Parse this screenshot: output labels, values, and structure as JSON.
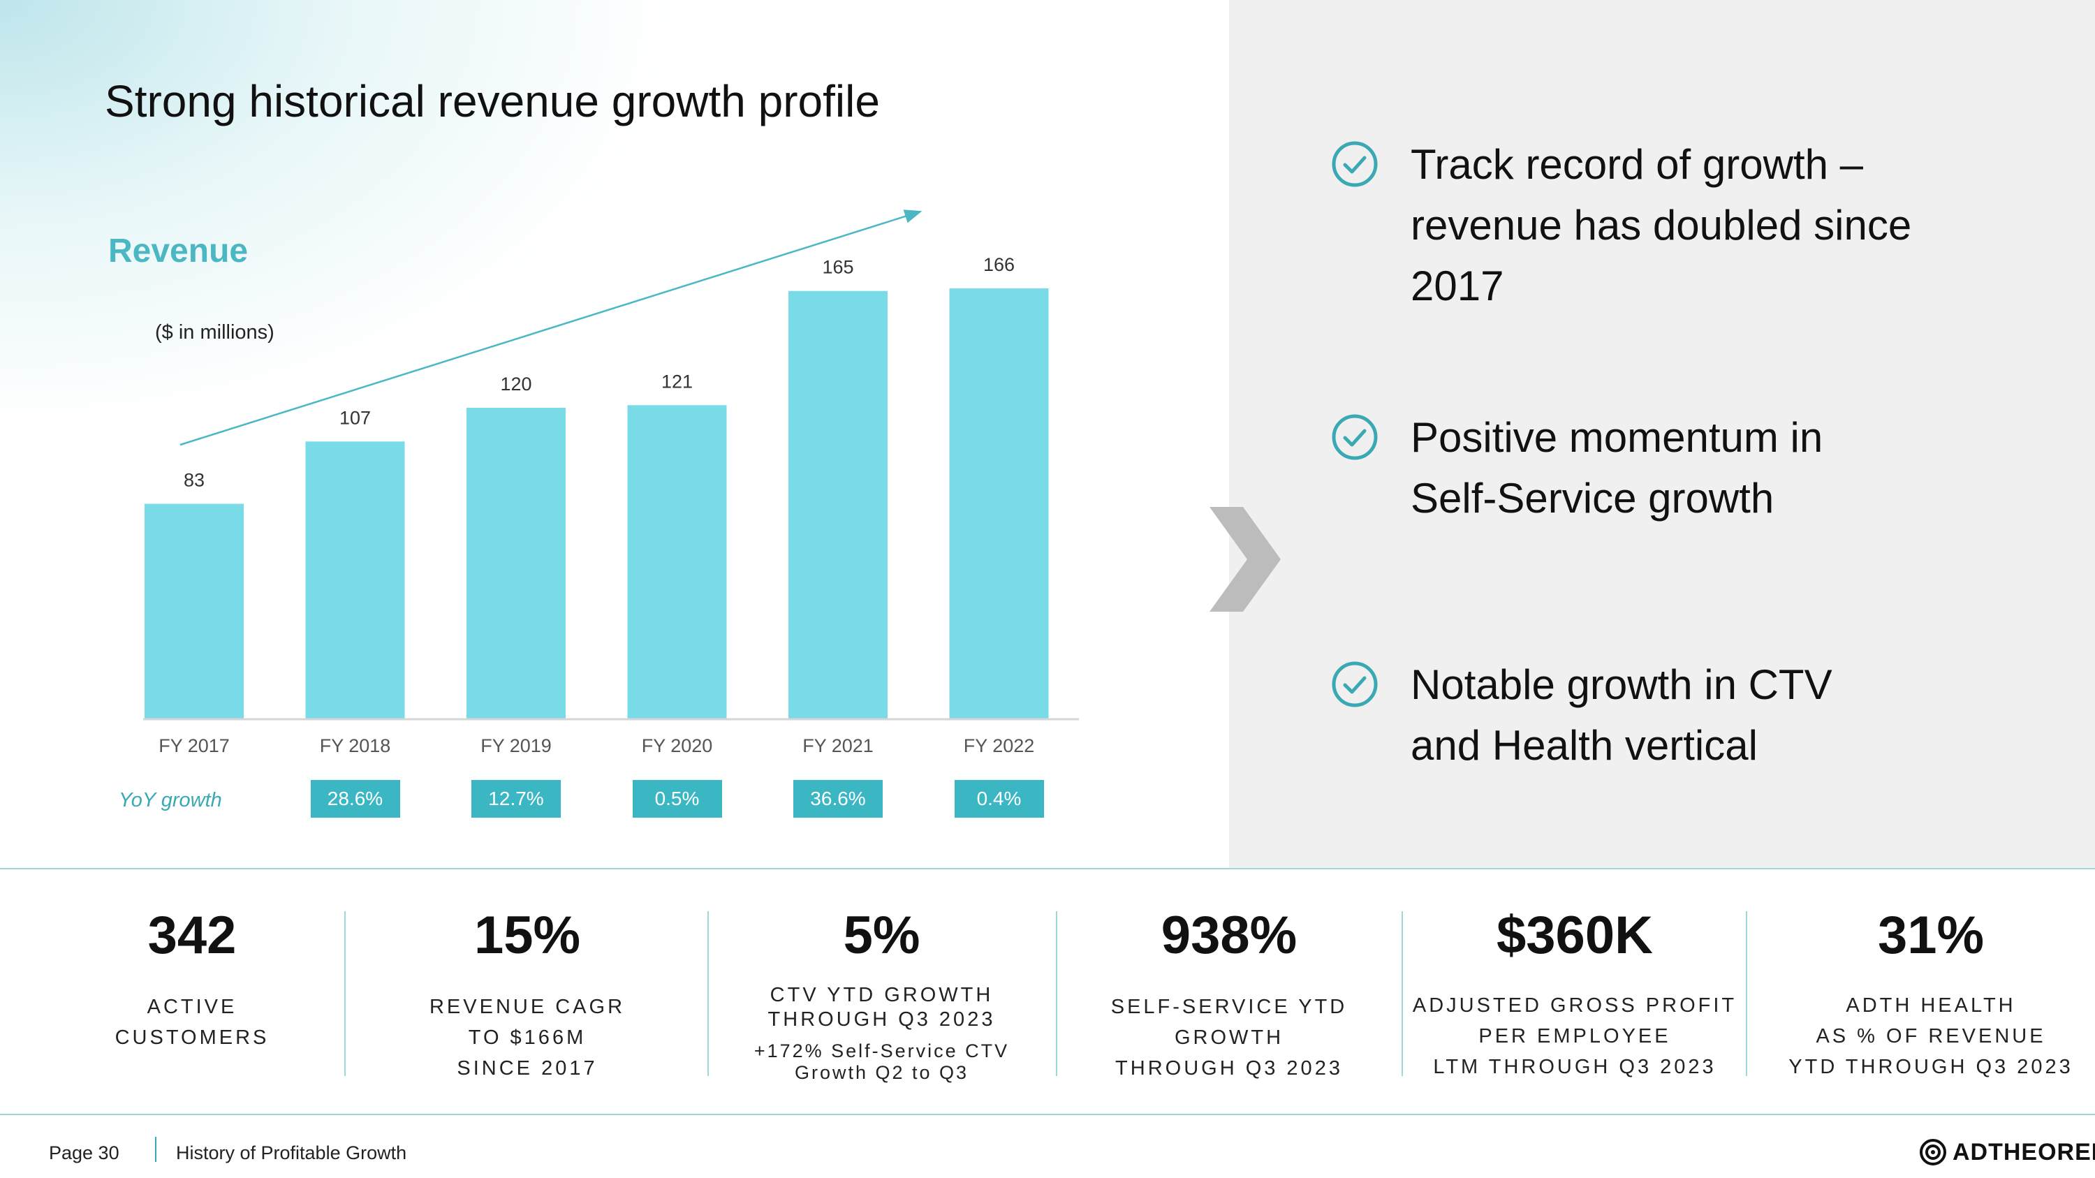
{
  "title": "Strong historical revenue growth profile",
  "revenue_label": "Revenue",
  "unit_label": "($ in millions)",
  "yoy_label": "YoY growth",
  "chart_data": {
    "type": "bar",
    "title": "Revenue",
    "ylabel": "($ in millions)",
    "categories": [
      "FY 2017",
      "FY 2018",
      "FY 2019",
      "FY 2020",
      "FY 2021",
      "FY 2022"
    ],
    "values": [
      83,
      107,
      120,
      121,
      165,
      166
    ],
    "yoy_growth": [
      "",
      "28.6%",
      "12.7%",
      "0.5%",
      "36.6%",
      "0.4%"
    ],
    "ylim": [
      0,
      166
    ],
    "trend_arrow": true,
    "colors": {
      "bar": "#79dbe8",
      "axis": "#d6d6d6",
      "arrow": "#4ab7c2",
      "yoy_box": "#3bb6c3"
    }
  },
  "bullets": [
    {
      "icon": "check-circle-icon",
      "text": "Track record of growth – revenue has doubled since 2017"
    },
    {
      "icon": "check-circle-icon",
      "text": "Positive momentum in Self-Service growth"
    },
    {
      "icon": "check-circle-icon",
      "text": "Notable growth in CTV and Health vertical"
    }
  ],
  "stats": [
    {
      "value": "342",
      "line1": "ACTIVE",
      "line2": "CUSTOMERS",
      "line3": ""
    },
    {
      "value": "15%",
      "line1": "REVENUE CAGR",
      "line2": "TO $166M",
      "line3": "SINCE 2017"
    },
    {
      "value": "5%",
      "line1": "CTV YTD GROWTH",
      "line2": "THROUGH Q3 2023",
      "line3": "",
      "sub1": "+172% Self-Service CTV",
      "sub2": "Growth Q2 to Q3"
    },
    {
      "value": "938%",
      "line1": "SELF-SERVICE YTD",
      "line2": "GROWTH",
      "line3": "THROUGH Q3 2023"
    },
    {
      "value": "$360K",
      "line1": "ADJUSTED GROSS PROFIT",
      "line2": "PER EMPLOYEE",
      "line3": "LTM THROUGH Q3 2023"
    },
    {
      "value": "31%",
      "line1": "ADTH HEALTH",
      "line2": "AS % OF REVENUE",
      "line3": "YTD THROUGH Q3 2023"
    }
  ],
  "footer": {
    "page": "Page 30",
    "section": "History of Profitable Growth",
    "logo_text": "ADTHEORENT"
  }
}
